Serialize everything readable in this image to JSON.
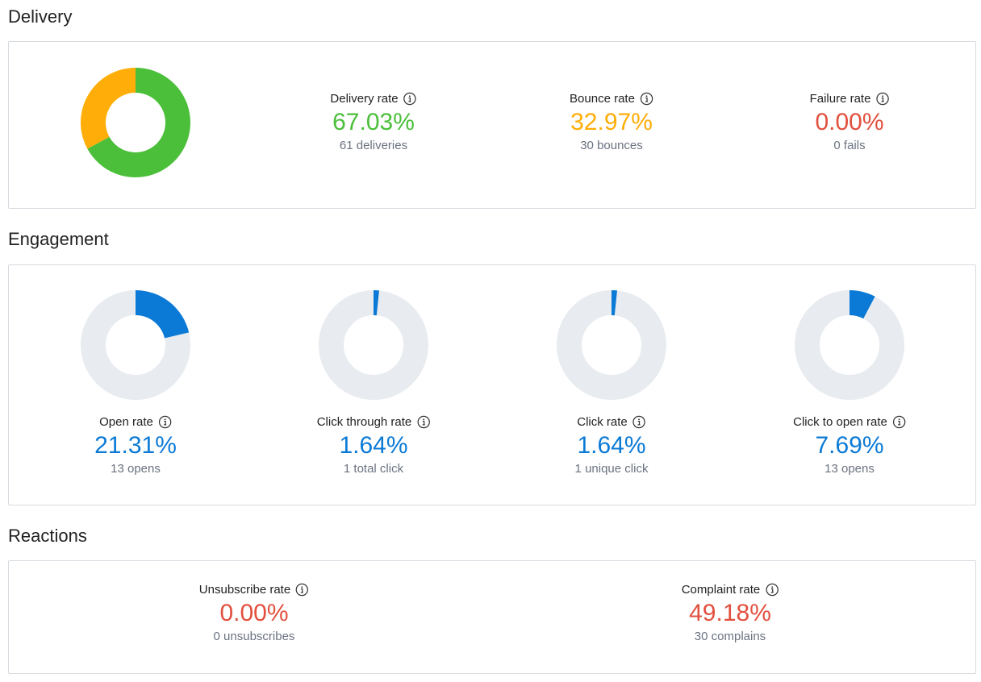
{
  "colors": {
    "green": "#4bbf3a",
    "orange": "#ffad08",
    "red": "#e2503f",
    "blue": "#0b7ad6",
    "track": "#e8ebef"
  },
  "delivery": {
    "title": "Delivery",
    "stats": [
      {
        "label": "Delivery rate",
        "value": "67.03%",
        "sub": "61 deliveries",
        "color": "green",
        "icon": "info-icon"
      },
      {
        "label": "Bounce rate",
        "value": "32.97%",
        "sub": "30 bounces",
        "color": "orange",
        "icon": "info-icon"
      },
      {
        "label": "Failure rate",
        "value": "0.00%",
        "sub": "0 fails",
        "color": "red",
        "icon": "info-icon"
      }
    ],
    "chart_data": {
      "type": "pie",
      "labels": [
        "Delivery rate",
        "Bounce rate",
        "Failure rate"
      ],
      "values": [
        67.03,
        32.97,
        0.0
      ]
    }
  },
  "engagement": {
    "title": "Engagement",
    "stats": [
      {
        "label": "Open rate",
        "value": "21.31%",
        "sub": "13 opens",
        "percent": 21.31,
        "icon": "info-icon"
      },
      {
        "label": "Click through rate",
        "value": "1.64%",
        "sub": "1 total click",
        "percent": 1.64,
        "icon": "info-icon"
      },
      {
        "label": "Click rate",
        "value": "1.64%",
        "sub": "1 unique click",
        "percent": 1.64,
        "icon": "info-icon"
      },
      {
        "label": "Click to open rate",
        "value": "7.69%",
        "sub": "13 opens",
        "percent": 7.69,
        "icon": "info-icon"
      }
    ]
  },
  "reactions": {
    "title": "Reactions",
    "stats": [
      {
        "label": "Unsubscribe rate",
        "value": "0.00%",
        "sub": "0 unsubscribes",
        "icon": "info-icon"
      },
      {
        "label": "Complaint rate",
        "value": "49.18%",
        "sub": "30 complains",
        "icon": "info-icon"
      }
    ]
  }
}
